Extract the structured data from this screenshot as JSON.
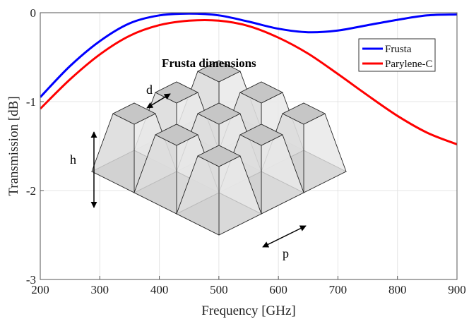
{
  "chart_data": {
    "type": "line",
    "title": "",
    "xlabel": "Frequency [GHz]",
    "ylabel": "Transmission [dB]",
    "xlim": [
      200,
      900
    ],
    "ylim": [
      -3,
      0
    ],
    "xticks": [
      200,
      300,
      400,
      500,
      600,
      700,
      800,
      900
    ],
    "yticks": [
      0,
      -1,
      -2,
      -3
    ],
    "grid": true,
    "legend_position": "top-right",
    "series": [
      {
        "name": "Frusta",
        "color": "#0000ff",
        "x": [
          200,
          250,
          300,
          350,
          400,
          450,
          500,
          550,
          600,
          650,
          700,
          750,
          800,
          850,
          900
        ],
        "y": [
          -0.95,
          -0.6,
          -0.32,
          -0.12,
          -0.03,
          -0.01,
          -0.03,
          -0.1,
          -0.18,
          -0.22,
          -0.2,
          -0.14,
          -0.08,
          -0.03,
          -0.02
        ]
      },
      {
        "name": "Parylene-C",
        "color": "#ff0000",
        "x": [
          200,
          250,
          300,
          350,
          400,
          450,
          500,
          550,
          600,
          650,
          700,
          750,
          800,
          850,
          900
        ],
        "y": [
          -1.08,
          -0.75,
          -0.47,
          -0.26,
          -0.14,
          -0.09,
          -0.09,
          -0.15,
          -0.28,
          -0.46,
          -0.69,
          -0.93,
          -1.16,
          -1.35,
          -1.48
        ]
      }
    ]
  },
  "inset": {
    "title": "Frusta dimensions",
    "labels": {
      "d": "d",
      "h": "h",
      "p": "p"
    }
  }
}
